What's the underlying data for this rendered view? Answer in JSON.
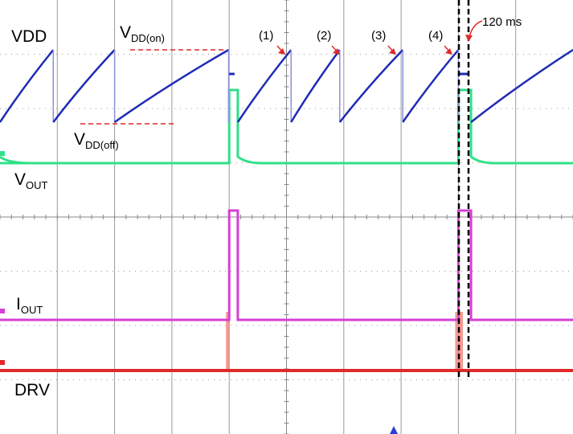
{
  "chart_data": {
    "type": "line",
    "title": "",
    "xlabel": "",
    "ylabel": "",
    "grid": true,
    "divisions": {
      "x": 10,
      "y": 8
    },
    "series": [
      {
        "name": "VDD",
        "color": "#1f2bb5",
        "label_main": "VDD",
        "label_sub": "",
        "cycles": [
          {
            "start": 0.0,
            "peak": 0.93
          },
          {
            "start": 0.93,
            "peak": 2.0
          },
          {
            "start": 2.0,
            "peak": 3.99
          },
          {
            "start": 4.15,
            "peak": 5.08
          },
          {
            "start": 5.08,
            "peak": 5.93
          },
          {
            "start": 5.93,
            "peak": 7.03
          },
          {
            "start": 7.03,
            "peak": 8.0
          },
          {
            "start": 8.22,
            "peak": 10.0
          }
        ]
      },
      {
        "name": "VOUT",
        "color": "#2fe08a",
        "label_main": "V",
        "label_sub": "OUT"
      },
      {
        "name": "IOUT",
        "color": "#d63fd3",
        "label_main": "I",
        "label_sub": "OUT"
      },
      {
        "name": "DRV",
        "color": "#e02a2a",
        "label_main": "DRV",
        "label_sub": ""
      }
    ],
    "events": [
      {
        "t": 4.0,
        "end": 4.15
      },
      {
        "t": 8.0,
        "end": 8.22
      }
    ],
    "annotations": {
      "vdd_on": {
        "main": "V",
        "sub": "DD(on)"
      },
      "vdd_off": {
        "main": "V",
        "sub": "DD(off)"
      },
      "peaks": [
        "(1)",
        "(2)",
        "(3)",
        "(4)"
      ],
      "duration": "120 ms"
    }
  }
}
